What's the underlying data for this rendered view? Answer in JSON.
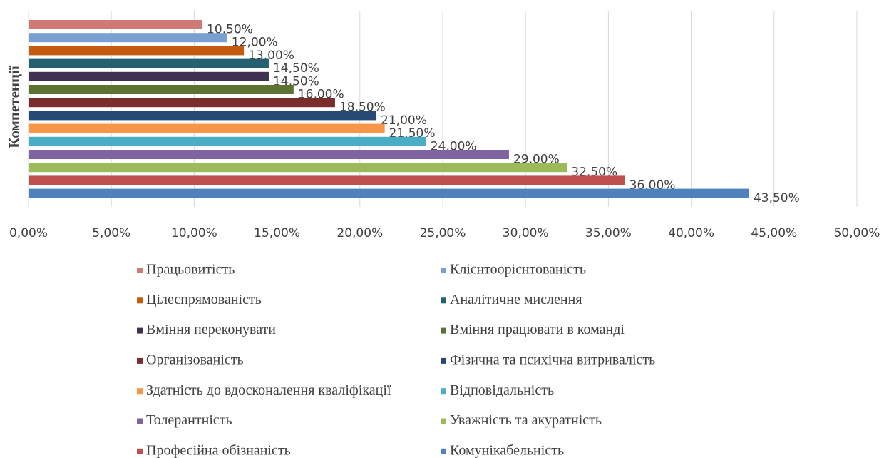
{
  "chart_data": {
    "type": "hbar",
    "ylabel": "Компетенції",
    "xlim": [
      0,
      50
    ],
    "xticks": [
      {
        "value": 0,
        "label": "0,00%"
      },
      {
        "value": 5,
        "label": "5,00%"
      },
      {
        "value": 10,
        "label": "10,00%"
      },
      {
        "value": 15,
        "label": "15,00%"
      },
      {
        "value": 20,
        "label": "20,00%"
      },
      {
        "value": 25,
        "label": "25,00%"
      },
      {
        "value": 30,
        "label": "30,00%"
      },
      {
        "value": 35,
        "label": "35,00%"
      },
      {
        "value": 40,
        "label": "40,00%"
      },
      {
        "value": 45,
        "label": "45,00%"
      },
      {
        "value": 50,
        "label": "50,00%"
      }
    ],
    "grid": true,
    "legend": "bottom",
    "series": [
      {
        "name": "Працьовитість",
        "color": "#d07a77",
        "values": [
          10.5
        ],
        "value_labels": [
          "10,50%"
        ]
      },
      {
        "name": "Клієнтоорієнтованість",
        "color": "#7a9fd1",
        "values": [
          12
        ],
        "value_labels": [
          "12,00%"
        ]
      },
      {
        "name": "Цілеспрямованість",
        "color": "#c55a11",
        "values": [
          13
        ],
        "value_labels": [
          "13,00%"
        ]
      },
      {
        "name": "Аналітичне мислення",
        "color": "#256170",
        "values": [
          14.5
        ],
        "value_labels": [
          "14,50%"
        ]
      },
      {
        "name": "Вміння переконувати",
        "color": "#3e3152",
        "values": [
          14.5
        ],
        "value_labels": [
          "14,50%"
        ]
      },
      {
        "name": "Вміння працювати в команді",
        "color": "#5e7232",
        "values": [
          16
        ],
        "value_labels": [
          "16,00%"
        ]
      },
      {
        "name": "Організованість",
        "color": "#7b2c2c",
        "values": [
          18.5
        ],
        "value_labels": [
          "18,50%"
        ]
      },
      {
        "name": "Фізична та психічна витривалість",
        "color": "#264a73",
        "values": [
          21
        ],
        "value_labels": [
          "21,00%"
        ]
      },
      {
        "name": "Здатність до вдосконалення кваліфікації",
        "color": "#f79646",
        "values": [
          21.5
        ],
        "value_labels": [
          "21,50%"
        ]
      },
      {
        "name": "Відповідальність",
        "color": "#4bacc6",
        "values": [
          24
        ],
        "value_labels": [
          "24,00%"
        ]
      },
      {
        "name": "Толерантність",
        "color": "#8064a2",
        "values": [
          29
        ],
        "value_labels": [
          "29,00%"
        ]
      },
      {
        "name": "Уважність та акуратність",
        "color": "#9bbb59",
        "values": [
          32.5
        ],
        "value_labels": [
          "32,50%"
        ]
      },
      {
        "name": "Професійна обізнаність",
        "color": "#c0504d",
        "values": [
          36
        ],
        "value_labels": [
          "36,00%"
        ]
      },
      {
        "name": "Комунікабельність",
        "color": "#4f81bd",
        "values": [
          43.5
        ],
        "value_labels": [
          "43,50%"
        ]
      }
    ]
  }
}
